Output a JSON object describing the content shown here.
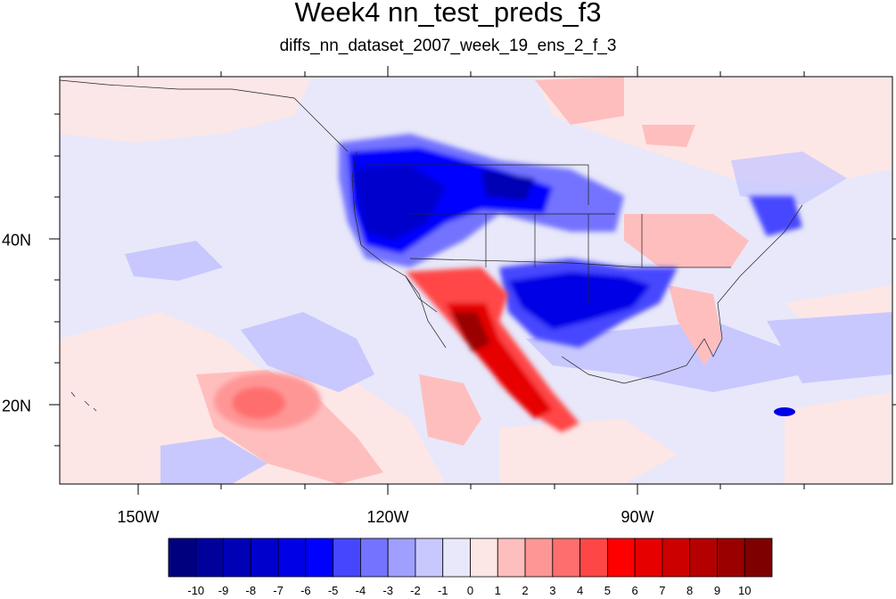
{
  "title": "Week4 nn_test_preds_f3",
  "subtitle": "diffs_nn_dataset_2007_week_19_ens_2_f_3",
  "lon_labels": [
    "150W",
    "120W",
    "90W"
  ],
  "lat_labels": [
    "40N",
    "20N"
  ],
  "colorbar": {
    "labels": [
      "-10",
      "-9",
      "-8",
      "-7",
      "-6",
      "-5",
      "-4",
      "-3",
      "-2",
      "-1",
      "0",
      "1",
      "2",
      "3",
      "4",
      "5",
      "6",
      "7",
      "8",
      "9",
      "10"
    ],
    "colors": [
      "#00007f",
      "#00009b",
      "#0000b4",
      "#0000cd",
      "#0000e6",
      "#0000ff",
      "#4646ff",
      "#7373ff",
      "#9f9fff",
      "#c8c8ff",
      "#e8e8fa",
      "#fde6e6",
      "#ffbebe",
      "#ff9696",
      "#ff6e6e",
      "#ff4646",
      "#ff0000",
      "#e60000",
      "#cd0000",
      "#b40000",
      "#9b0000",
      "#7f0000"
    ]
  }
}
